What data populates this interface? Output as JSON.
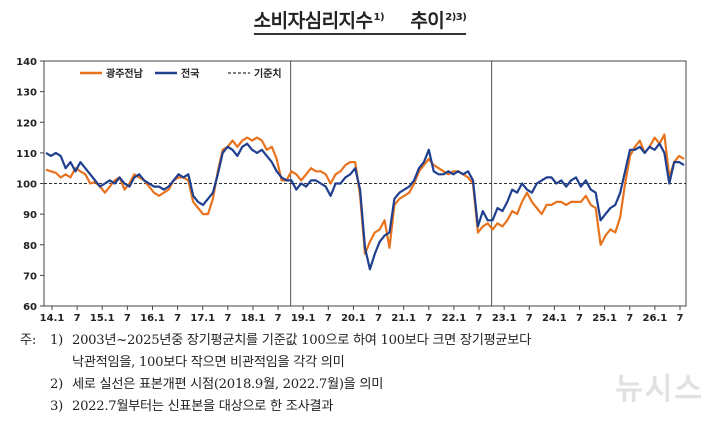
{
  "title": {
    "main": "소비자심리지수",
    "main_sup": "1)",
    "trend": "추이",
    "trend_sup": "2)3)"
  },
  "chart_data": {
    "type": "line",
    "ylim": [
      60,
      140
    ],
    "yticks": [
      60,
      70,
      80,
      90,
      100,
      110,
      120,
      130,
      140
    ],
    "baseline": 100,
    "x_tick_labels": [
      "14.1",
      "7",
      "15.1",
      "7",
      "16.1",
      "7",
      "17.1",
      "7",
      "18.1",
      "7",
      "19.1",
      "7",
      "20.1",
      "7",
      "21.1",
      "7",
      "22.1",
      "7",
      "23.1",
      "7",
      "24.1",
      "7",
      "25.1",
      "7",
      "26.1",
      "7"
    ],
    "vertical_lines_at_tick_index": [
      9,
      17
    ],
    "legend": [
      "광주전남",
      "전국",
      "기준치"
    ],
    "series": [
      {
        "name": "광주전남",
        "color": "#e8731e",
        "values": [
          104.5,
          104,
          103.5,
          102,
          103,
          102,
          105,
          104,
          103,
          100,
          100.5,
          99,
          97,
          99,
          101,
          102,
          98,
          100,
          103,
          102,
          101,
          99,
          97,
          96,
          97,
          98,
          101,
          102,
          102,
          101,
          94,
          92,
          90,
          90,
          95,
          104,
          111,
          112,
          114,
          112,
          114,
          115,
          114,
          115,
          114,
          111,
          112,
          108,
          101,
          101,
          104,
          103,
          101,
          103,
          105,
          104,
          104,
          103,
          100,
          103,
          104,
          106,
          107,
          107,
          96,
          77,
          81,
          84,
          85,
          88,
          79,
          93,
          95,
          96,
          97,
          100,
          104,
          106,
          108,
          106,
          105,
          104,
          103,
          104,
          104,
          103,
          102,
          100,
          84,
          86,
          87,
          85,
          87,
          86,
          88,
          91,
          90,
          94,
          97,
          94,
          92,
          90,
          93,
          93,
          94,
          94,
          93,
          94,
          94,
          94,
          96,
          93,
          92,
          80,
          83,
          85,
          84,
          89,
          100,
          109,
          112,
          114,
          110,
          112,
          115,
          113,
          116,
          102,
          107,
          109,
          108
        ]
      },
      {
        "name": "전국",
        "color": "#1f3f8f",
        "values": [
          110,
          109,
          110,
          109,
          105,
          107,
          104,
          107,
          105,
          103,
          101,
          99,
          100,
          101,
          100,
          102,
          100,
          99,
          102,
          103,
          101,
          100,
          99,
          99,
          98,
          99,
          101,
          103,
          102,
          103,
          96,
          94,
          93,
          95,
          97,
          103,
          110,
          112,
          111,
          109,
          112,
          113,
          111,
          110,
          111,
          109,
          107,
          104,
          102,
          101,
          101,
          98,
          100,
          99,
          101,
          101,
          100,
          99,
          96,
          100,
          100,
          102,
          103,
          105,
          98,
          79,
          72,
          77,
          81,
          83,
          84,
          95,
          97,
          98,
          99,
          101,
          105,
          107,
          111,
          104,
          103,
          103,
          104,
          103,
          104,
          103,
          104,
          101,
          86,
          91,
          88,
          88,
          92,
          91,
          94,
          98,
          97,
          100,
          98,
          97,
          100,
          101,
          102,
          102,
          100,
          101,
          99,
          101,
          102,
          99,
          101,
          98,
          97,
          88,
          90,
          92,
          93,
          97,
          104,
          111,
          111,
          112,
          110,
          112,
          111,
          113,
          110,
          100,
          107,
          107,
          106
        ]
      }
    ]
  },
  "notes": {
    "lead": "주:",
    "items": [
      {
        "num": "1)",
        "text": "2003년~2025년중 장기평균치를 기준값 100으로 하여 100보다 크면 장기평균보다",
        "cont": "낙관적임을, 100보다 작으면 비관적임을 각각 의미"
      },
      {
        "num": "2)",
        "text": "세로 실선은 표본개편 시점(2018.9월, 2022.7월)을 의미"
      },
      {
        "num": "3)",
        "text": "2022.7월부터는 신표본을 대상으로 한 조사결과"
      }
    ]
  },
  "watermark": "뉴시스"
}
